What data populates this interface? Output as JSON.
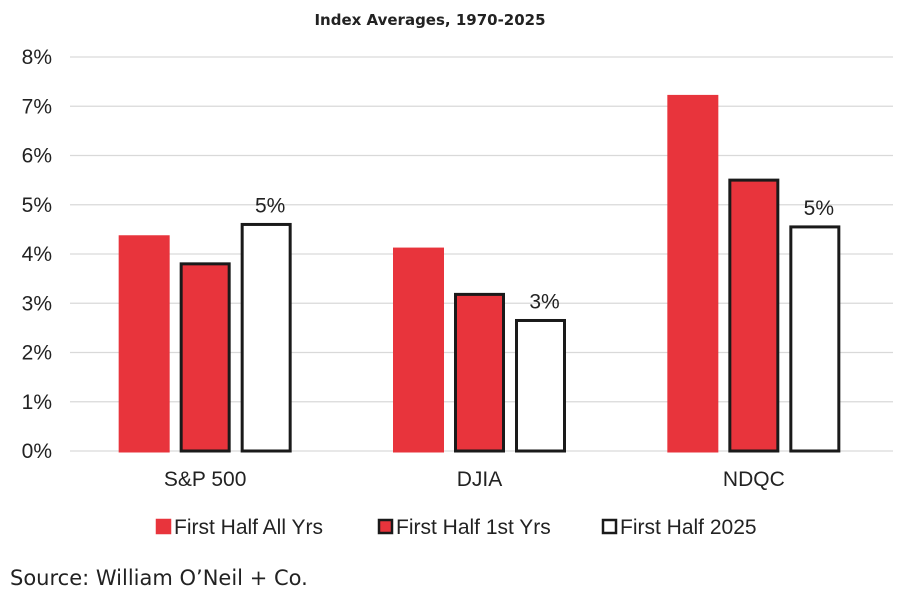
{
  "chart_data": {
    "type": "bar",
    "title": "Index Averages, 1970-2025",
    "categories": [
      "S&P 500",
      "DJIA",
      "NDQC"
    ],
    "series": [
      {
        "name": "First Half All Yrs",
        "values": [
          4.35,
          4.1,
          7.2
        ],
        "fill": "#e8343c",
        "stroke": "#e8343c"
      },
      {
        "name": "First Half 1st Yrs",
        "values": [
          3.8,
          3.18,
          5.5
        ],
        "fill": "#e8343c",
        "stroke": "#1a1a1a"
      },
      {
        "name": "First Half 2025",
        "values": [
          4.6,
          2.65,
          4.55
        ],
        "fill": "#ffffff",
        "stroke": "#1a1a1a"
      }
    ],
    "data_labels": [
      {
        "category": 0,
        "series": 2,
        "text": "5%"
      },
      {
        "category": 1,
        "series": 2,
        "text": "3%"
      },
      {
        "category": 2,
        "series": 2,
        "text": "5%"
      }
    ],
    "ylim": [
      0,
      8
    ],
    "yticks": [
      "0%",
      "1%",
      "2%",
      "3%",
      "4%",
      "5%",
      "6%",
      "7%",
      "8%"
    ],
    "grid": true,
    "legend_position": "bottom",
    "source": "Source: William O’Neil + Co."
  }
}
